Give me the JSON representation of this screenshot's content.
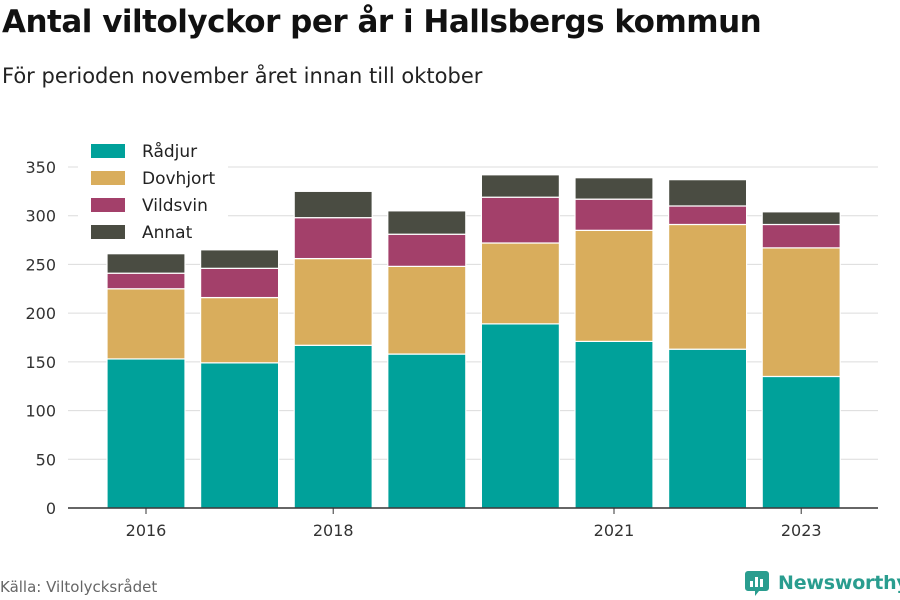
{
  "title": "Antal viltolyckor per år i Hallsbergs kommun",
  "subtitle": "För perioden november året innan till oktober",
  "source": "Källa: Viltolycksrådet",
  "brand": {
    "name": "Newsworthy",
    "icon": "bar-chart-logo-icon"
  },
  "chart_data": {
    "type": "bar",
    "stacked": true,
    "categories": [
      "2016",
      "2017",
      "2018",
      "2019",
      "2020",
      "2021",
      "2022",
      "2023"
    ],
    "x_tick_labels": [
      "2016",
      "",
      "2018",
      "",
      "",
      "2021",
      "",
      "2023"
    ],
    "series": [
      {
        "name": "Rådjur",
        "color": "#00a19a",
        "values": [
          153,
          149,
          167,
          158,
          189,
          171,
          163,
          135
        ]
      },
      {
        "name": "Dovhjort",
        "color": "#d9ad5c",
        "values": [
          72,
          67,
          89,
          90,
          83,
          114,
          128,
          132
        ]
      },
      {
        "name": "Vildsvin",
        "color": "#a3406a",
        "values": [
          16,
          30,
          42,
          33,
          47,
          32,
          19,
          24
        ]
      },
      {
        "name": "Annat",
        "color": "#4a4c42",
        "values": [
          20,
          19,
          27,
          24,
          23,
          22,
          27,
          13
        ]
      }
    ],
    "ylim": [
      0,
      350
    ],
    "yticks": [
      0,
      50,
      100,
      150,
      200,
      250,
      300,
      350
    ],
    "xlabel": "",
    "ylabel": "",
    "grid": true,
    "legend_position": "top-left"
  }
}
